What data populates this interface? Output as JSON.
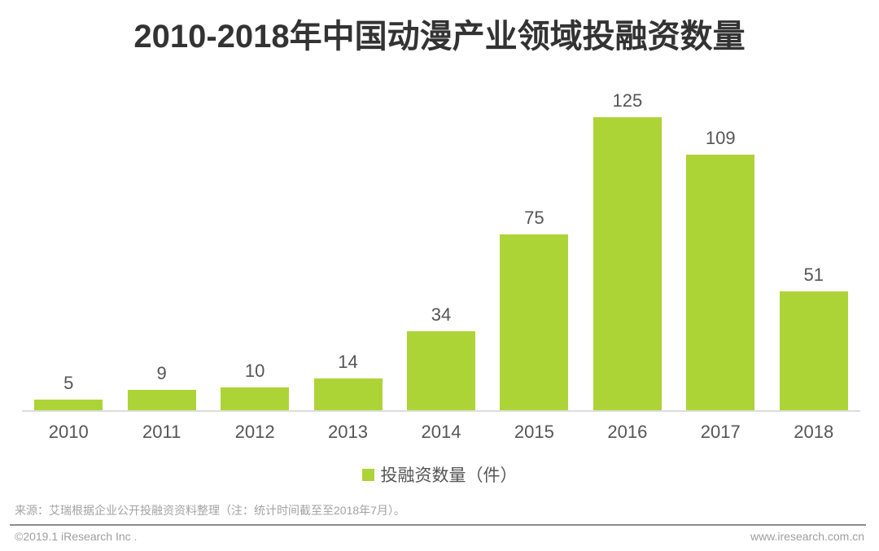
{
  "title": "2010-2018年中国动漫产业领域投融资数量",
  "chart_data": {
    "type": "bar",
    "title": "2010-2018年中国动漫产业领域投融资数量",
    "categories": [
      "2010",
      "2011",
      "2012",
      "2013",
      "2014",
      "2015",
      "2016",
      "2017",
      "2018"
    ],
    "values": [
      5,
      9,
      10,
      14,
      34,
      75,
      125,
      109,
      51
    ],
    "series_name": "投融资数量（件）",
    "xlabel": "",
    "ylabel": "",
    "ylim": [
      0,
      140
    ],
    "grid": false,
    "y_axis_visible": false,
    "legend_position": "bottom",
    "data_labels": true,
    "bar_color": "#ADD437"
  },
  "legend": {
    "label": "投融资数量（件）",
    "swatch_color": "#ADD437"
  },
  "source_note": "来源：艾瑞根据企业公开投融资资料整理（注：统计时间截至至2018年7月）。",
  "footer": {
    "copyright": "©2019.1 iResearch Inc .",
    "website": "www.iresearch.com.cn"
  },
  "colors": {
    "bar": "#ADD437",
    "title_text": "#333333",
    "label_text": "#555555",
    "axis_line": "#DCDCDC",
    "divider_line": "#8C8C8C",
    "footnote_text": "#9E9E9E"
  }
}
